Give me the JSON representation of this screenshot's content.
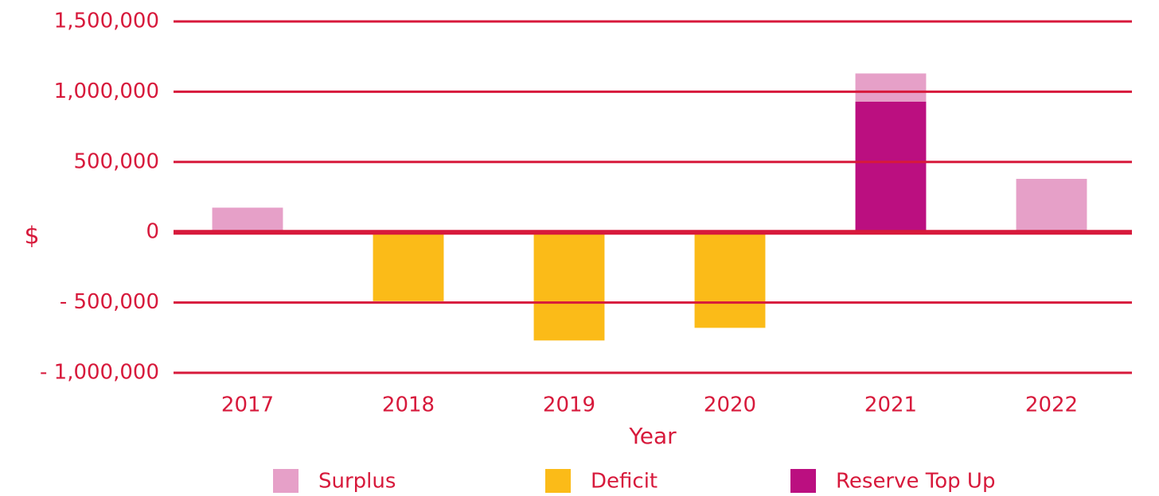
{
  "chart_data": {
    "type": "stacked_bar",
    "x_label": "Year",
    "y_label": "$",
    "categories": [
      "2017",
      "2018",
      "2019",
      "2020",
      "2021",
      "2022"
    ],
    "series": [
      {
        "name": "Surplus",
        "color": "#e6a0c8",
        "values": [
          175000,
          null,
          null,
          null,
          200000,
          380000
        ]
      },
      {
        "name": "Deficit",
        "color": "#fbbb18",
        "values": [
          null,
          -490000,
          -770000,
          -680000,
          null,
          null
        ]
      },
      {
        "name": "Reserve Top Up",
        "color": "#bb0f80",
        "values": [
          null,
          null,
          null,
          null,
          930000,
          null
        ]
      }
    ],
    "ylim": [
      -1000000,
      1500000
    ],
    "yticks": [
      {
        "value": -1000000,
        "label": "- 1,000,000"
      },
      {
        "value": -500000,
        "label": "- 500,000"
      },
      0,
      {
        "value": 500000,
        "label": "500,000"
      },
      {
        "value": 1000000,
        "label": "1,000,000"
      },
      {
        "value": 1500000,
        "label": "1,500,000"
      }
    ],
    "grid": true,
    "axis_color": "#d7193b"
  }
}
